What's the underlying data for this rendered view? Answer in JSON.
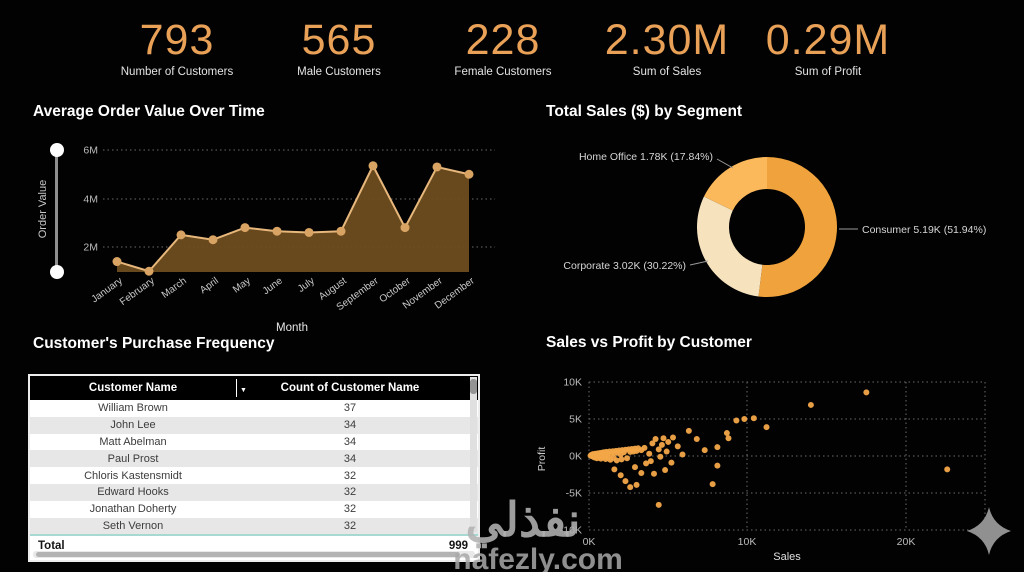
{
  "kpis": [
    {
      "value": "793",
      "label": "Number of Customers"
    },
    {
      "value": "565",
      "label": "Male Customers"
    },
    {
      "value": "228",
      "label": "Female Customers"
    },
    {
      "value": "2.30M",
      "label": "Sum of Sales"
    },
    {
      "value": "0.29M",
      "label": "Sum of Profit"
    }
  ],
  "chart_data": [
    {
      "type": "area",
      "title": "Average Order Value Over Time",
      "xlabel": "Month",
      "ylabel": "Order Value",
      "categories": [
        "January",
        "February",
        "March",
        "April",
        "May",
        "June",
        "July",
        "August",
        "September",
        "October",
        "November",
        "December"
      ],
      "values_millions": [
        1.4,
        1.0,
        2.5,
        2.3,
        2.8,
        2.65,
        2.6,
        2.65,
        5.35,
        2.8,
        5.3,
        5.0
      ],
      "yticks": [
        "6M",
        "4M",
        "2M"
      ],
      "ylim": [
        1,
        6.5
      ],
      "grid": "dotted",
      "line_color": "#E7B77C",
      "area_color": "#6E4D1F",
      "marker_color": "#D9A463"
    },
    {
      "type": "pie",
      "title": "Total Sales ($) by Segment",
      "slices": [
        {
          "name": "Consumer",
          "label": "Consumer 5.19K (51.94%)",
          "value_k": 5.19,
          "pct": 51.94,
          "color": "#F0A23C"
        },
        {
          "name": "Corporate",
          "label": "Corporate 3.02K (30.22%)",
          "value_k": 3.02,
          "pct": 30.22,
          "color": "#F6E3BE"
        },
        {
          "name": "Home Office",
          "label": "Home Office 1.78K (17.84%)",
          "value_k": 1.78,
          "pct": 17.84,
          "color": "#FCB95B"
        }
      ],
      "donut": true,
      "start_angle_deg": 0
    },
    {
      "type": "scatter",
      "title": "Sales vs Profit by Customer",
      "xlabel": "Sales",
      "ylabel": "Profit",
      "xticks": [
        "0K",
        "10K",
        "20K"
      ],
      "yticks": [
        "10K",
        "5K",
        "0K",
        "-5K",
        "-10K"
      ],
      "xlim_k": [
        0,
        25
      ],
      "ylim_k": [
        -10,
        10
      ],
      "grid": "dotted",
      "point_color": "#F3A648",
      "points_k": [
        [
          0.1,
          0.05
        ],
        [
          0.15,
          0.15
        ],
        [
          0.2,
          -0.05
        ],
        [
          0.25,
          0.25
        ],
        [
          0.3,
          0.1
        ],
        [
          0.35,
          -0.2
        ],
        [
          0.4,
          0.3
        ],
        [
          0.45,
          0.05
        ],
        [
          0.5,
          -0.3
        ],
        [
          0.55,
          0.35
        ],
        [
          0.6,
          0.15
        ],
        [
          0.65,
          -0.1
        ],
        [
          0.7,
          0.4
        ],
        [
          0.75,
          -0.35
        ],
        [
          0.8,
          0.2
        ],
        [
          0.85,
          0.45
        ],
        [
          0.9,
          -0.15
        ],
        [
          0.95,
          0.5
        ],
        [
          1.0,
          0.1
        ],
        [
          1.05,
          -0.4
        ],
        [
          1.1,
          0.55
        ],
        [
          1.15,
          0.25
        ],
        [
          1.2,
          -0.2
        ],
        [
          1.3,
          0.6
        ],
        [
          1.35,
          -0.5
        ],
        [
          1.4,
          0.3
        ],
        [
          1.5,
          0.65
        ],
        [
          1.55,
          -0.25
        ],
        [
          1.6,
          0.4
        ],
        [
          1.7,
          0.7
        ],
        [
          1.75,
          -0.6
        ],
        [
          1.8,
          0.45
        ],
        [
          1.9,
          0.75
        ],
        [
          2.0,
          0.2
        ],
        [
          2.05,
          -0.45
        ],
        [
          2.1,
          0.8
        ],
        [
          2.2,
          0.5
        ],
        [
          2.3,
          0.85
        ],
        [
          2.4,
          -0.3
        ],
        [
          2.5,
          0.9
        ],
        [
          2.6,
          0.55
        ],
        [
          2.7,
          0.95
        ],
        [
          2.8,
          0.6
        ],
        [
          2.9,
          1.0
        ],
        [
          3.0,
          0.7
        ],
        [
          3.1,
          1.05
        ],
        [
          3.3,
          0.8
        ],
        [
          3.5,
          1.1
        ],
        [
          1.6,
          -1.8
        ],
        [
          2.0,
          -2.6
        ],
        [
          2.3,
          -3.4
        ],
        [
          2.6,
          -4.2
        ],
        [
          3.0,
          -3.9
        ],
        [
          2.9,
          -1.5
        ],
        [
          3.3,
          -2.3
        ],
        [
          3.6,
          -1.0
        ],
        [
          3.8,
          0.3
        ],
        [
          4.0,
          1.7
        ],
        [
          4.2,
          2.3
        ],
        [
          4.4,
          0.9
        ],
        [
          4.5,
          -0.1
        ],
        [
          4.6,
          1.5
        ],
        [
          4.7,
          2.4
        ],
        [
          4.9,
          0.6
        ],
        [
          5.0,
          1.9
        ],
        [
          5.3,
          2.5
        ],
        [
          5.6,
          1.3
        ],
        [
          5.9,
          0.2
        ],
        [
          4.4,
          -6.6
        ],
        [
          4.1,
          -2.4
        ],
        [
          4.8,
          -1.9
        ],
        [
          5.2,
          -0.9
        ],
        [
          3.9,
          -0.7
        ],
        [
          6.3,
          3.4
        ],
        [
          6.8,
          2.3
        ],
        [
          7.3,
          0.8
        ],
        [
          7.8,
          -3.8
        ],
        [
          8.1,
          1.2
        ],
        [
          8.1,
          -1.3
        ],
        [
          8.7,
          3.1
        ],
        [
          8.8,
          2.4
        ],
        [
          9.3,
          4.8
        ],
        [
          9.8,
          5.0
        ],
        [
          10.4,
          5.1
        ],
        [
          11.2,
          3.9
        ],
        [
          14.0,
          6.9
        ],
        [
          17.5,
          8.6
        ],
        [
          22.6,
          -1.8
        ]
      ]
    },
    {
      "type": "table",
      "title": "Customer's Purchase Frequency",
      "columns": [
        "Customer Name",
        "Count of Customer Name"
      ],
      "rows": [
        [
          "William Brown",
          "37"
        ],
        [
          "John Lee",
          "34"
        ],
        [
          "Matt Abelman",
          "34"
        ],
        [
          "Paul Prost",
          "34"
        ],
        [
          "Chloris Kastensmidt",
          "32"
        ],
        [
          "Edward Hooks",
          "32"
        ],
        [
          "Jonathan Doherty",
          "32"
        ],
        [
          "Seth Vernon",
          "32"
        ]
      ],
      "total_label": "Total",
      "total_value": "999",
      "sort_icon": "▼"
    }
  ],
  "watermark": {
    "arabic": "نفذلي",
    "latin": "nafezly.com"
  },
  "colors": {
    "kpi_number": "#E9A158",
    "title_text": "#FFFFFF",
    "grid_dotted": "#6A6A6A",
    "background": "#020202",
    "sparkle_gray": "#909090"
  }
}
